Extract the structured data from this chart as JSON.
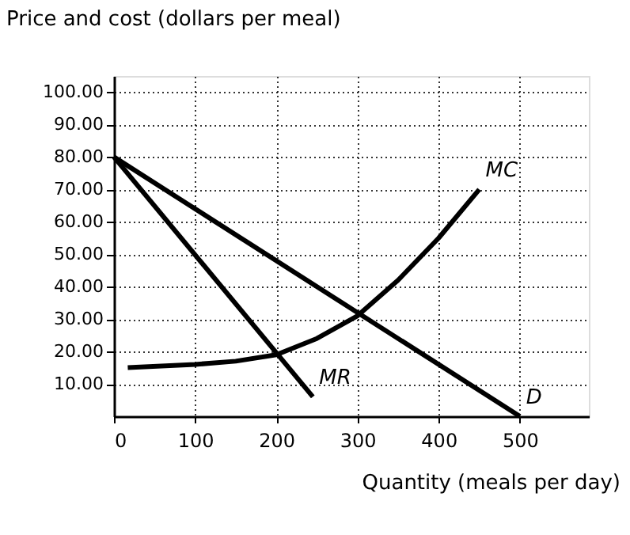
{
  "chart_data": {
    "type": "line",
    "xlabel": "Quantity (meals per day)",
    "ylabel": "Price and cost (dollars per meal)",
    "series": [
      {
        "color": "#000000",
        "x": [
          0,
          500
        ],
        "values": [
          80,
          0
        ]
      },
      {
        "color": "#000000",
        "x": [
          0,
          245
        ],
        "values": [
          80,
          6
        ]
      },
      {
        "color": "#000000",
        "x": [
          17,
          100,
          150,
          200,
          250,
          300,
          350,
          400,
          450
        ],
        "values": [
          15,
          16,
          17,
          19,
          24,
          31,
          42,
          55,
          70
        ]
      }
    ],
    "annotations": [
      {
        "text": "MC",
        "x": 450,
        "y": 70
      },
      {
        "text": "MR",
        "x": 245,
        "y": 6
      },
      {
        "text": "D",
        "x": 500,
        "y": 0
      }
    ],
    "xlim": [
      0,
      585
    ],
    "ylim": [
      0,
      105
    ],
    "xticks": [
      0,
      100,
      200,
      300,
      400,
      500
    ],
    "yticks": [
      {
        "value": 10,
        "label": "10.00"
      },
      {
        "value": 20,
        "label": "20.00"
      },
      {
        "value": 30,
        "label": "30.00"
      },
      {
        "value": 40,
        "label": "40.00"
      },
      {
        "value": 50,
        "label": "50.00"
      },
      {
        "value": 60,
        "label": "60.00"
      },
      {
        "value": 70,
        "label": "70.00"
      },
      {
        "value": 80,
        "label": "80.00"
      },
      {
        "value": 90,
        "label": "90.00"
      },
      {
        "value": 100,
        "label": "100.00"
      }
    ],
    "grid": true,
    "marker": "none",
    "line_style": "solid"
  }
}
